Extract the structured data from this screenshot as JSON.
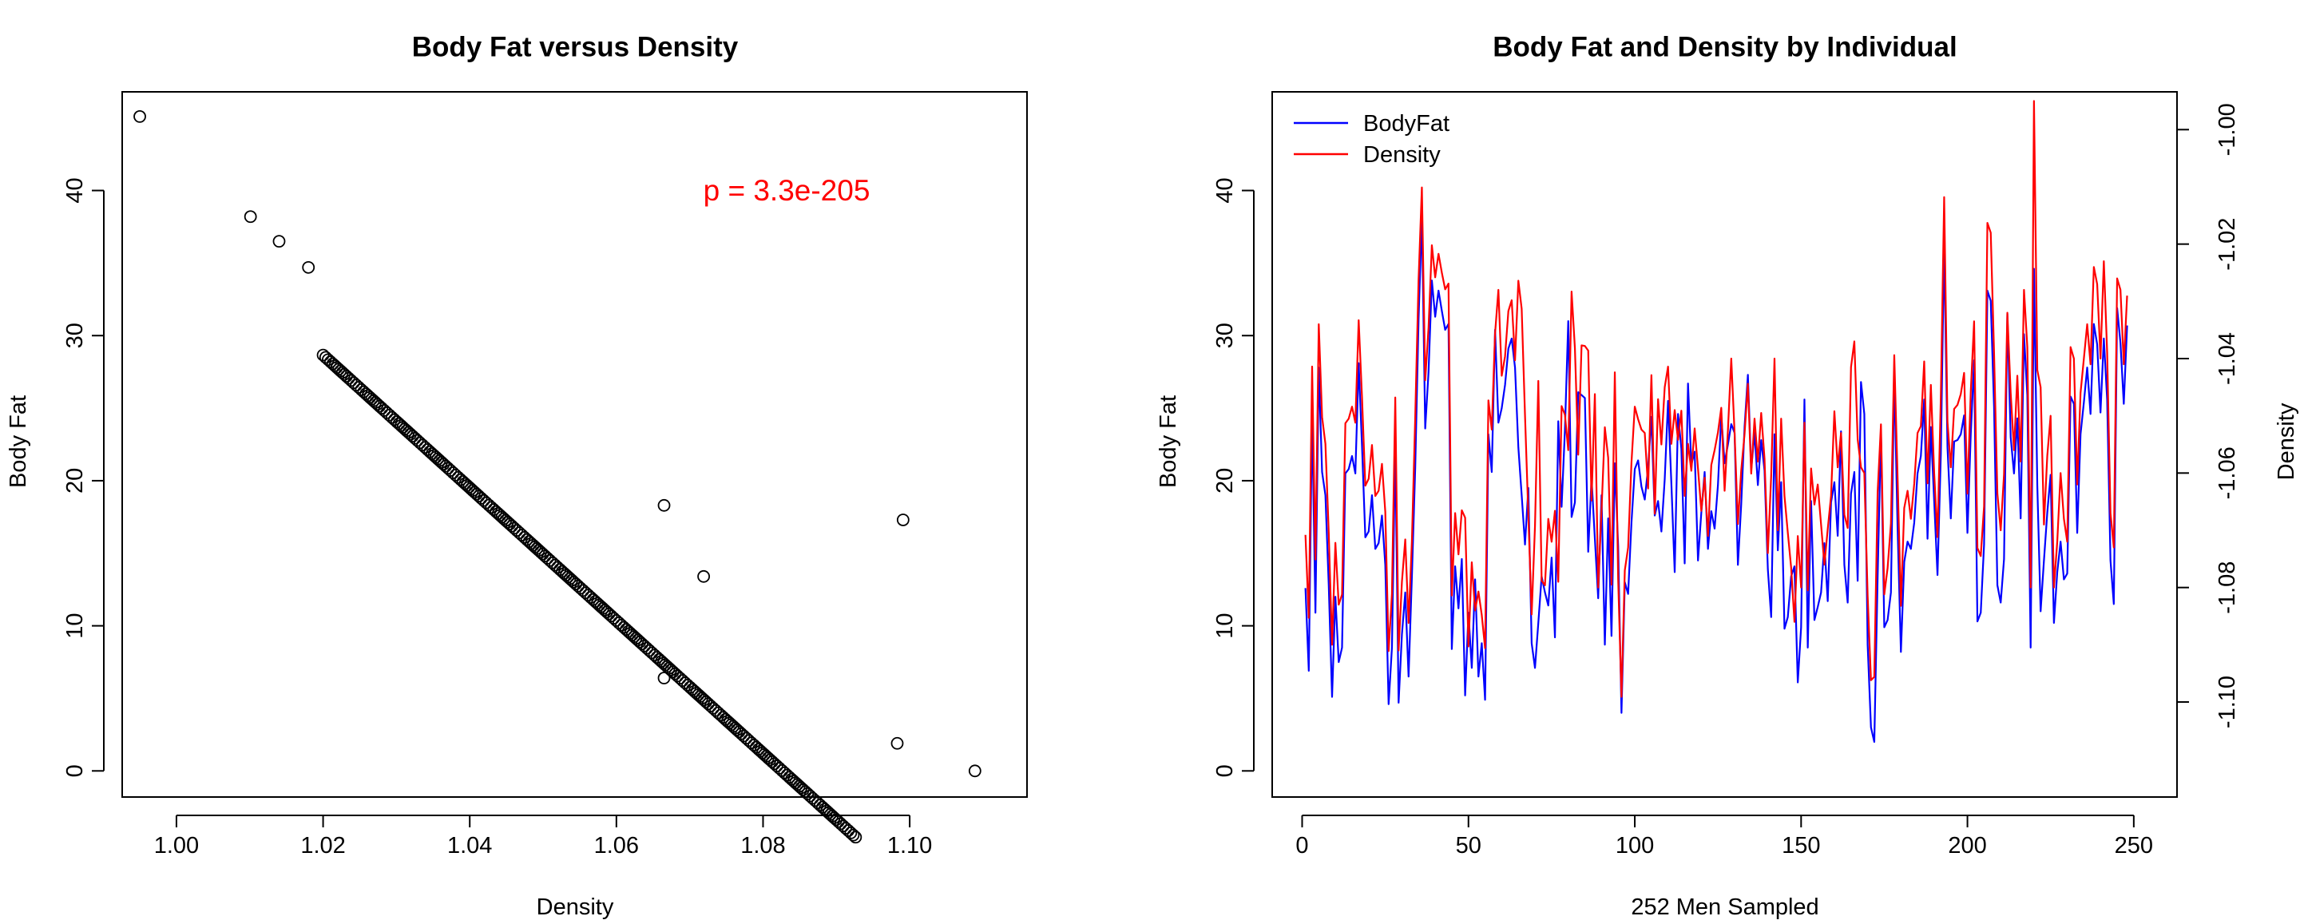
{
  "chart_data": [
    {
      "type": "scatter",
      "title": "Body Fat versus Density",
      "xlabel": "Density",
      "ylabel": "Body Fat",
      "xlim": [
        0.9926,
        1.116
      ],
      "ylim": [
        -1.8,
        46.8
      ],
      "x_ticks": [
        "1.00",
        "1.02",
        "1.04",
        "1.06",
        "1.08",
        "1.10"
      ],
      "y_ticks": [
        "0",
        "10",
        "20",
        "30",
        "40"
      ],
      "annotation": "p =  3.3e-205",
      "annotation_color": "#ff0000",
      "point_color": "#000000",
      "grid": false,
      "outliers": [
        {
          "x": 0.995,
          "y": 45.1
        },
        {
          "x": 1.0101,
          "y": 38.2
        },
        {
          "x": 1.014,
          "y": 36.5
        },
        {
          "x": 1.018,
          "y": 34.7
        },
        {
          "x": 1.0665,
          "y": 18.3
        },
        {
          "x": 1.0665,
          "y": 6.4
        },
        {
          "x": 1.0719,
          "y": 13.4
        },
        {
          "x": 1.0991,
          "y": 17.3
        },
        {
          "x": 1.0983,
          "y": 1.9
        },
        {
          "x": 1.1089,
          "y": 0.0
        }
      ],
      "trend": {
        "x_start": 1.02,
        "x_end": 1.0925,
        "intercept": 495.35,
        "slope": -457.54,
        "count": 242
      }
    },
    {
      "type": "line",
      "title": "Body Fat and Density by Individual",
      "xlabel": "252 Men Sampled",
      "ylabel": "Body Fat",
      "y2label": "Density",
      "xlim": [
        -9.0,
        263.0
      ],
      "ylim": [
        -1.8,
        46.8
      ],
      "y2lim": [
        -1.1166,
        -0.9934
      ],
      "x_ticks": [
        "0",
        "50",
        "100",
        "150",
        "200",
        "250"
      ],
      "y_ticks": [
        "0",
        "10",
        "20",
        "30",
        "40"
      ],
      "y2_ticks": [
        "-1.00",
        "-1.02",
        "-1.04",
        "-1.06",
        "-1.08",
        "-1.10"
      ],
      "legend_position": "top-left",
      "grid": false,
      "series": [
        {
          "name": "BodyFat",
          "color": "#0000ff",
          "values": [
            12.6,
            6.9,
            24.6,
            10.9,
            27.8,
            20.6,
            19.0,
            12.8,
            5.1,
            12.0,
            7.5,
            8.5,
            20.5,
            20.8,
            21.7,
            20.5,
            28.1,
            22.4,
            16.1,
            16.5,
            19.0,
            15.3,
            15.7,
            17.6,
            14.2,
            4.6,
            8.5,
            22.4,
            4.7,
            9.4,
            12.3,
            6.5,
            13.4,
            20.9,
            31.1,
            38.2,
            23.6,
            27.5,
            33.8,
            31.3,
            33.1,
            31.7,
            30.4,
            30.8,
            8.4,
            14.1,
            11.2,
            14.6,
            5.2,
            10.9,
            7.1,
            13.2,
            6.5,
            8.8,
            4.9,
            23.2,
            20.6,
            30.4,
            24.0,
            25.0,
            26.6,
            29.1,
            29.8,
            27.8,
            22.3,
            19.0,
            15.6,
            19.5,
            8.8,
            7.1,
            10.2,
            13.4,
            12.3,
            11.4,
            14.7,
            9.2,
            24.1,
            18.2,
            23.5,
            31.0,
            17.5,
            18.5,
            26.1,
            25.9,
            25.7,
            15.1,
            20.2,
            16.0,
            11.9,
            19.0,
            8.7,
            17.4,
            9.3,
            21.2,
            15.5,
            4.0,
            13.0,
            12.2,
            17.1,
            20.8,
            21.4,
            19.6,
            18.7,
            20.9,
            24.4,
            17.6,
            18.6,
            16.5,
            20.1,
            25.5,
            19.8,
            13.7,
            24.6,
            22.2,
            14.3,
            26.7,
            21.1,
            22.0,
            14.5,
            17.8,
            20.6,
            15.3,
            17.9,
            16.7,
            19.7,
            24.5,
            21.2,
            22.5,
            23.9,
            23.3,
            14.2,
            18.4,
            23.7,
            27.3,
            20.8,
            23.3,
            19.7,
            22.8,
            20.7,
            13.9,
            10.6,
            23.2,
            15.2,
            19.9,
            9.8,
            10.6,
            13.4,
            14.1,
            6.1,
            9.9,
            25.6,
            8.5,
            18.6,
            10.4,
            11.3,
            12.3,
            15.7,
            11.7,
            18.5,
            19.9,
            16.2,
            23.4,
            14.2,
            11.6,
            19.1,
            20.6,
            13.1,
            26.8,
            24.6,
            8.7,
            3.0,
            2.0,
            13.3,
            23.4,
            9.9,
            10.4,
            12.3,
            27.4,
            16.8,
            8.2,
            14.4,
            15.8,
            15.3,
            17.1,
            20.5,
            21.7,
            25.6,
            16.0,
            23.7,
            18.6,
            13.5,
            21.8,
            36.3,
            22.3,
            17.4,
            22.7,
            22.8,
            23.2,
            24.5,
            16.4,
            23.2,
            28.3,
            10.3,
            10.9,
            15.6,
            33.1,
            32.4,
            25.1,
            12.8,
            11.6,
            14.6,
            31.5,
            23.0,
            20.5,
            24.3,
            17.4,
            30.1,
            25.9,
            8.5,
            34.6,
            19.7,
            11.0,
            14.5,
            17.8,
            20.4,
            10.2,
            13.7,
            15.8,
            13.2,
            13.6,
            25.8,
            25.3,
            16.4,
            23.2,
            25.4,
            27.8,
            24.6,
            30.8,
            29.4,
            24.7,
            29.8,
            25.6,
            14.5,
            11.5,
            31.9,
            29.5,
            25.3,
            30.7
          ]
        },
        {
          "name": "Density",
          "color": "#ff0000",
          "values": [
            -1.0708,
            -1.0853,
            -1.0414,
            -1.0751,
            -1.034,
            -1.0502,
            -1.0549,
            -1.0704,
            -1.09,
            -1.0722,
            -1.083,
            -1.0812,
            -1.0513,
            -1.0505,
            -1.0484,
            -1.0512,
            -1.0333,
            -1.0468,
            -1.0622,
            -1.061,
            -1.0551,
            -1.064,
            -1.0631,
            -1.0584,
            -1.0668,
            -1.0911,
            -1.0811,
            -1.0468,
            -1.091,
            -1.079,
            -1.0716,
            -1.0862,
            -1.0719,
            -1.0502,
            -1.0263,
            -1.0101,
            -1.0438,
            -1.0346,
            -1.0202,
            -1.0258,
            -1.0217,
            -1.025,
            -1.0279,
            -1.0269,
            -1.0814,
            -1.067,
            -1.0742,
            -1.0665,
            -1.0678,
            -1.0903,
            -1.0756,
            -1.084,
            -1.0807,
            -1.0848,
            -1.0906,
            -1.0473,
            -1.0524,
            -1.0356,
            -1.028,
            -1.043,
            -1.0396,
            -1.0317,
            -1.0298,
            -1.0403,
            -1.0264,
            -1.0313,
            -1.0499,
            -1.0673,
            -1.0847,
            -1.0693,
            -1.0439,
            -1.0788,
            -1.0796,
            -1.068,
            -1.072,
            -1.0666,
            -1.079,
            -1.0483,
            -1.0498,
            -1.056,
            -1.0283,
            -1.0382,
            -1.0568,
            -1.0377,
            -1.0378,
            -1.0386,
            -1.0648,
            -1.0462,
            -1.08,
            -1.0666,
            -1.052,
            -1.0573,
            -1.0795,
            -1.0424,
            -1.0785,
            -1.0991,
            -1.077,
            -1.073,
            -1.0582,
            -1.0484,
            -1.0506,
            -1.0524,
            -1.053,
            -1.0627,
            -1.0429,
            -1.0671,
            -1.0471,
            -1.055,
            -1.045,
            -1.0414,
            -1.0549,
            -1.049,
            -1.0542,
            -1.0491,
            -1.064,
            -1.0549,
            -1.0596,
            -1.0522,
            -1.0592,
            -1.0666,
            -1.0608,
            -1.071,
            -1.0586,
            -1.056,
            -1.0529,
            -1.0486,
            -1.0631,
            -1.0525,
            -1.04,
            -1.053,
            -1.0689,
            -1.0595,
            -1.0532,
            -1.0444,
            -1.0601,
            -1.0505,
            -1.058,
            -1.0495,
            -1.0575,
            -1.074,
            -1.0605,
            -1.04,
            -1.07,
            -1.0505,
            -1.064,
            -1.0704,
            -1.0765,
            -1.086,
            -1.071,
            -1.08,
            -1.0512,
            -1.0805,
            -1.0592,
            -1.0655,
            -1.062,
            -1.069,
            -1.076,
            -1.0698,
            -1.064,
            -1.0492,
            -1.059,
            -1.053,
            -1.0673,
            -1.0696,
            -1.0415,
            -1.037,
            -1.0541,
            -1.059,
            -1.06,
            -1.0814,
            -1.0962,
            -1.0956,
            -1.0634,
            -1.0515,
            -1.0812,
            -1.0766,
            -1.0688,
            -1.0394,
            -1.0607,
            -1.0832,
            -1.0661,
            -1.0631,
            -1.068,
            -1.0619,
            -1.053,
            -1.0518,
            -1.0405,
            -1.0618,
            -1.0446,
            -1.06,
            -1.0712,
            -1.0468,
            -1.0118,
            -1.051,
            -1.059,
            -1.0488,
            -1.0481,
            -1.0462,
            -1.0425,
            -1.0636,
            -1.0458,
            -1.0335,
            -1.0731,
            -1.0745,
            -1.0658,
            -1.0163,
            -1.018,
            -1.039,
            -1.0636,
            -1.07,
            -1.0602,
            -1.032,
            -1.046,
            -1.056,
            -1.043,
            -1.058,
            -1.028,
            -1.038,
            -1.08,
            -0.995,
            -1.042,
            -1.045,
            -1.069,
            -1.057,
            -1.05,
            -1.08,
            -1.072,
            -1.06,
            -1.068,
            -1.072,
            -1.038,
            -1.04,
            -1.062,
            -1.046,
            -1.04,
            -1.034,
            -1.041,
            -1.024,
            -1.027,
            -1.04,
            -1.023,
            -1.039,
            -1.067,
            -1.073,
            -1.026,
            -1.028,
            -1.041,
            -1.029
          ]
        }
      ]
    }
  ]
}
